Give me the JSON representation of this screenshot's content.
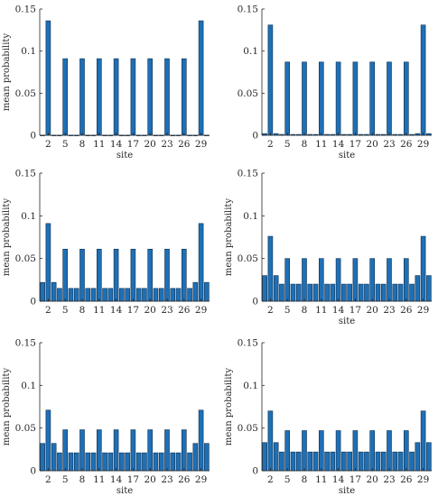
{
  "chart_data": [
    {
      "type": "bar",
      "ylim": [
        0,
        0.15
      ],
      "yticks": [
        "0",
        "0.05",
        "0.1",
        "0.15"
      ],
      "xticks": [
        "2",
        "5",
        "8",
        "11",
        "14",
        "17",
        "20",
        "23",
        "26",
        "29"
      ],
      "xlabel": "site",
      "ylabel": "mean probability",
      "grid": false,
      "x": [
        1,
        2,
        3,
        4,
        5,
        6,
        7,
        8,
        9,
        10,
        11,
        12,
        13,
        14,
        15,
        16,
        17,
        18,
        19,
        20,
        21,
        22,
        23,
        24,
        25,
        26,
        27,
        28,
        29,
        30
      ],
      "values": [
        0,
        0.136,
        0,
        0,
        0.091,
        0,
        0,
        0.091,
        0,
        0,
        0.091,
        0,
        0,
        0.091,
        0,
        0,
        0.091,
        0,
        0,
        0.091,
        0,
        0,
        0.091,
        0,
        0,
        0.091,
        0,
        0,
        0.136,
        0
      ]
    },
    {
      "type": "bar",
      "ylim": [
        0,
        0.15
      ],
      "yticks": [
        "0",
        "0.05",
        "0.1",
        "0.15"
      ],
      "xticks": [
        "2",
        "5",
        "8",
        "11",
        "14",
        "17",
        "20",
        "23",
        "26",
        "29"
      ],
      "xlabel": "site",
      "ylabel": "",
      "grid": false,
      "x": [
        1,
        2,
        3,
        4,
        5,
        6,
        7,
        8,
        9,
        10,
        11,
        12,
        13,
        14,
        15,
        16,
        17,
        18,
        19,
        20,
        21,
        22,
        23,
        24,
        25,
        26,
        27,
        28,
        29,
        30
      ],
      "values": [
        0.002,
        0.131,
        0.002,
        0.001,
        0.087,
        0.001,
        0.001,
        0.087,
        0.001,
        0.001,
        0.087,
        0.001,
        0.001,
        0.087,
        0.001,
        0.001,
        0.087,
        0.001,
        0.001,
        0.087,
        0.001,
        0.001,
        0.087,
        0.001,
        0.001,
        0.087,
        0.001,
        0.002,
        0.131,
        0.002
      ]
    },
    {
      "type": "bar",
      "ylim": [
        0,
        0.15
      ],
      "yticks": [
        "0",
        "0.05",
        "0.1",
        "0.15"
      ],
      "xticks": [
        "2",
        "5",
        "8",
        "11",
        "14",
        "17",
        "20",
        "23",
        "26",
        "29"
      ],
      "xlabel": "",
      "ylabel": "mean probability",
      "grid": false,
      "x": [
        1,
        2,
        3,
        4,
        5,
        6,
        7,
        8,
        9,
        10,
        11,
        12,
        13,
        14,
        15,
        16,
        17,
        18,
        19,
        20,
        21,
        22,
        23,
        24,
        25,
        26,
        27,
        28,
        29,
        30
      ],
      "values": [
        0.022,
        0.091,
        0.022,
        0.015,
        0.061,
        0.015,
        0.015,
        0.061,
        0.015,
        0.015,
        0.061,
        0.015,
        0.015,
        0.061,
        0.015,
        0.015,
        0.061,
        0.015,
        0.015,
        0.061,
        0.015,
        0.015,
        0.061,
        0.015,
        0.015,
        0.061,
        0.015,
        0.022,
        0.091,
        0.022
      ]
    },
    {
      "type": "bar",
      "ylim": [
        0,
        0.15
      ],
      "yticks": [
        "0",
        "0.05",
        "0.1",
        "0.15"
      ],
      "xticks": [
        "2",
        "5",
        "8",
        "11",
        "14",
        "17",
        "20",
        "23",
        "26",
        "29"
      ],
      "xlabel": "site",
      "ylabel": "mean probability",
      "grid": false,
      "x": [
        1,
        2,
        3,
        4,
        5,
        6,
        7,
        8,
        9,
        10,
        11,
        12,
        13,
        14,
        15,
        16,
        17,
        18,
        19,
        20,
        21,
        22,
        23,
        24,
        25,
        26,
        27,
        28,
        29,
        30
      ],
      "values": [
        0.03,
        0.076,
        0.03,
        0.02,
        0.05,
        0.02,
        0.02,
        0.05,
        0.02,
        0.02,
        0.05,
        0.02,
        0.02,
        0.05,
        0.02,
        0.02,
        0.05,
        0.02,
        0.02,
        0.05,
        0.02,
        0.02,
        0.05,
        0.02,
        0.02,
        0.05,
        0.02,
        0.03,
        0.076,
        0.03
      ]
    },
    {
      "type": "bar",
      "ylim": [
        0,
        0.15
      ],
      "yticks": [
        "0",
        "0.05",
        "0.1",
        "0.15"
      ],
      "xticks": [
        "2",
        "5",
        "8",
        "11",
        "14",
        "17",
        "20",
        "23",
        "26",
        "29"
      ],
      "xlabel": "site",
      "ylabel": "mean probability",
      "grid": false,
      "x": [
        1,
        2,
        3,
        4,
        5,
        6,
        7,
        8,
        9,
        10,
        11,
        12,
        13,
        14,
        15,
        16,
        17,
        18,
        19,
        20,
        21,
        22,
        23,
        24,
        25,
        26,
        27,
        28,
        29,
        30
      ],
      "values": [
        0.032,
        0.071,
        0.032,
        0.021,
        0.048,
        0.021,
        0.021,
        0.048,
        0.021,
        0.021,
        0.048,
        0.021,
        0.021,
        0.048,
        0.021,
        0.021,
        0.048,
        0.021,
        0.021,
        0.048,
        0.021,
        0.021,
        0.048,
        0.021,
        0.021,
        0.048,
        0.021,
        0.032,
        0.071,
        0.032
      ]
    },
    {
      "type": "bar",
      "ylim": [
        0,
        0.15
      ],
      "yticks": [
        "0",
        "0.05",
        "0.1",
        "0.15"
      ],
      "xticks": [
        "2",
        "5",
        "8",
        "11",
        "14",
        "17",
        "20",
        "23",
        "26",
        "29"
      ],
      "xlabel": "site",
      "ylabel": "mean probability",
      "grid": false,
      "x": [
        1,
        2,
        3,
        4,
        5,
        6,
        7,
        8,
        9,
        10,
        11,
        12,
        13,
        14,
        15,
        16,
        17,
        18,
        19,
        20,
        21,
        22,
        23,
        24,
        25,
        26,
        27,
        28,
        29,
        30
      ],
      "values": [
        0.033,
        0.07,
        0.033,
        0.022,
        0.047,
        0.022,
        0.022,
        0.047,
        0.022,
        0.022,
        0.047,
        0.022,
        0.022,
        0.047,
        0.022,
        0.022,
        0.047,
        0.022,
        0.022,
        0.047,
        0.022,
        0.022,
        0.047,
        0.022,
        0.022,
        0.047,
        0.022,
        0.033,
        0.07,
        0.033
      ]
    }
  ]
}
